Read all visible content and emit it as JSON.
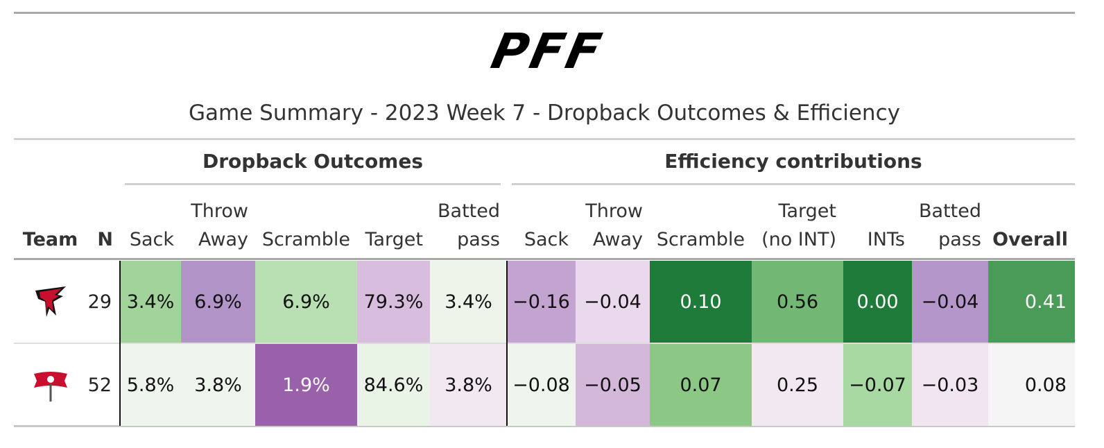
{
  "header": {
    "logo": "PFF",
    "title": "Game Summary - 2023 Week 7 - Dropback Outcomes & Efficiency"
  },
  "table": {
    "spanners": [
      "Dropback Outcomes",
      "Efficiency contributions"
    ],
    "columns": [
      [
        "Team"
      ],
      [
        "N"
      ],
      [
        "Sack"
      ],
      [
        "Throw",
        "Away"
      ],
      [
        "Scramble"
      ],
      [
        "Target"
      ],
      [
        "Batted",
        "pass"
      ],
      [
        "Sack"
      ],
      [
        "Throw",
        "Away"
      ],
      [
        "Scramble"
      ],
      [
        "Target",
        "(no INT)"
      ],
      [
        "INTs"
      ],
      [
        "Batted",
        "pass"
      ],
      [
        "Overall"
      ]
    ],
    "rows": [
      [
        "29",
        "3.4%",
        "6.9%",
        "6.9%",
        "79.3%",
        "3.4%",
        "−0.16",
        "−0.04",
        "0.10",
        "0.56",
        "0.00",
        "−0.04",
        "0.41"
      ],
      [
        "52",
        "5.8%",
        "3.8%",
        "1.9%",
        "84.6%",
        "3.8%",
        "−0.08",
        "−0.05",
        "0.07",
        "0.25",
        "−0.07",
        "−0.03",
        "0.08"
      ]
    ],
    "fills": [
      [
        "#a1d39a",
        "#b294c8",
        "#b8e0b2",
        "#d9bddf",
        "#edf5ea",
        "#c3a4d1",
        "#ead9ec",
        "#1e7b3a",
        "#72b874",
        "#1e7b3a",
        "#b596cb",
        "#4a9b57"
      ],
      [
        "#eef5ec",
        "#eef5ec",
        "#9861a9",
        "#eaf4e6",
        "#f2e8f2",
        "#eef5ec",
        "#d3b8da",
        "#8cc786",
        "#f2e8f2",
        "#a8d9a2",
        "#f0e5f0",
        "#f5f5f5"
      ]
    ]
  }
}
